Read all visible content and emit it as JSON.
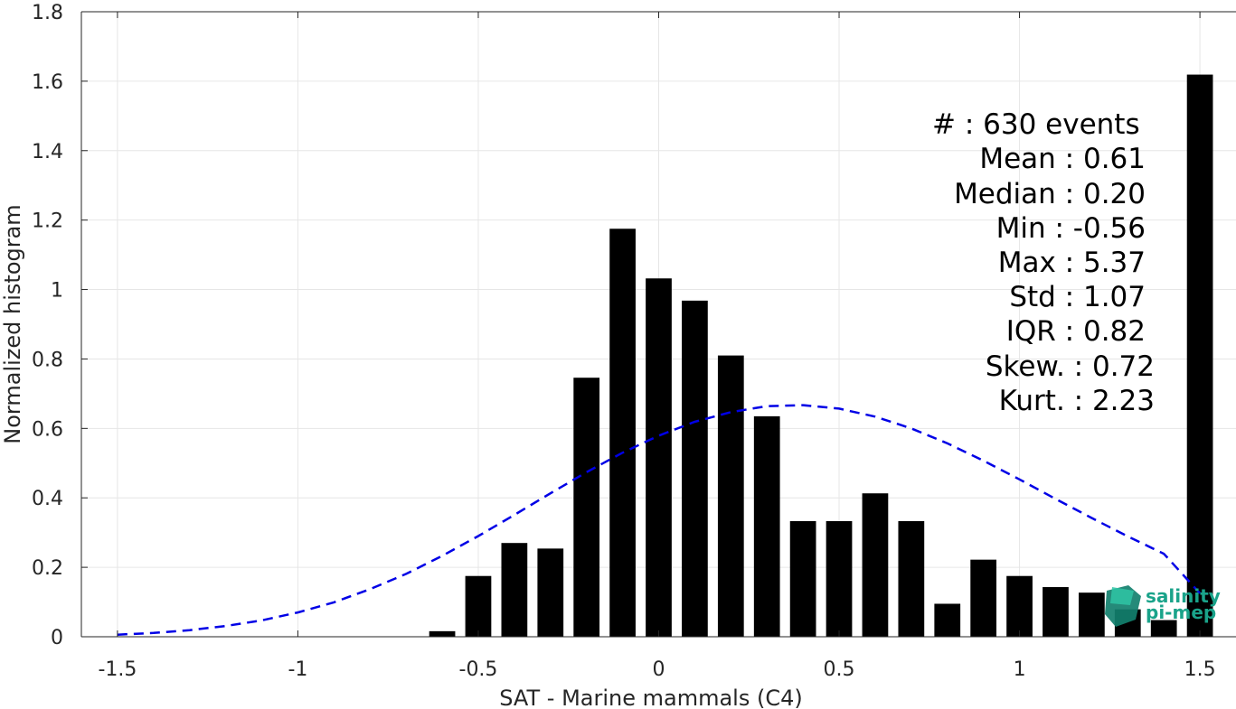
{
  "chart_data": {
    "type": "bar",
    "xlabel": "SAT - Marine mammals (C4)",
    "ylabel": "Normalized histogram",
    "xlim": [
      -1.6,
      1.6
    ],
    "ylim": [
      0,
      1.8
    ],
    "grid": true,
    "x_ticks": [
      -1.5,
      -1,
      -0.5,
      0,
      0.5,
      1,
      1.5
    ],
    "x_tick_labels": [
      "-1.5",
      "-1",
      "-0.5",
      "0",
      "0.5",
      "1",
      "1.5"
    ],
    "y_ticks": [
      0,
      0.2,
      0.4,
      0.6,
      0.8,
      1,
      1.2,
      1.4,
      1.6,
      1.8
    ],
    "y_tick_labels": [
      "0",
      "0.2",
      "0.4",
      "0.6",
      "0.8",
      "1",
      "1.2",
      "1.4",
      "1.6",
      "1.8"
    ],
    "bar_width": 0.072,
    "bars": [
      {
        "x": -0.6,
        "y": 0.016
      },
      {
        "x": -0.5,
        "y": 0.175
      },
      {
        "x": -0.4,
        "y": 0.27
      },
      {
        "x": -0.3,
        "y": 0.254
      },
      {
        "x": -0.2,
        "y": 0.746
      },
      {
        "x": -0.1,
        "y": 1.175
      },
      {
        "x": 0.0,
        "y": 1.032
      },
      {
        "x": 0.1,
        "y": 0.968
      },
      {
        "x": 0.2,
        "y": 0.81
      },
      {
        "x": 0.3,
        "y": 0.635
      },
      {
        "x": 0.4,
        "y": 0.333
      },
      {
        "x": 0.5,
        "y": 0.333
      },
      {
        "x": 0.6,
        "y": 0.413
      },
      {
        "x": 0.7,
        "y": 0.333
      },
      {
        "x": 0.8,
        "y": 0.095
      },
      {
        "x": 0.9,
        "y": 0.222
      },
      {
        "x": 1.0,
        "y": 0.175
      },
      {
        "x": 1.1,
        "y": 0.143
      },
      {
        "x": 1.2,
        "y": 0.127
      },
      {
        "x": 1.3,
        "y": 0.079
      },
      {
        "x": 1.4,
        "y": 0.048
      },
      {
        "x": 1.5,
        "y": 1.619
      }
    ],
    "fit_curve": {
      "style": "dashed",
      "color": "#0000e6",
      "points": [
        [
          -1.5,
          0.006
        ],
        [
          -1.4,
          0.011
        ],
        [
          -1.3,
          0.019
        ],
        [
          -1.2,
          0.031
        ],
        [
          -1.1,
          0.047
        ],
        [
          -1.0,
          0.07
        ],
        [
          -0.9,
          0.099
        ],
        [
          -0.8,
          0.137
        ],
        [
          -0.7,
          0.181
        ],
        [
          -0.6,
          0.233
        ],
        [
          -0.5,
          0.29
        ],
        [
          -0.4,
          0.351
        ],
        [
          -0.3,
          0.413
        ],
        [
          -0.2,
          0.474
        ],
        [
          -0.1,
          0.53
        ],
        [
          0.0,
          0.579
        ],
        [
          0.1,
          0.619
        ],
        [
          0.2,
          0.647
        ],
        [
          0.3,
          0.664
        ],
        [
          0.4,
          0.667
        ],
        [
          0.5,
          0.657
        ],
        [
          0.6,
          0.634
        ],
        [
          0.7,
          0.6
        ],
        [
          0.8,
          0.557
        ],
        [
          0.9,
          0.507
        ],
        [
          1.0,
          0.453
        ],
        [
          1.1,
          0.397
        ],
        [
          1.2,
          0.342
        ],
        [
          1.3,
          0.289
        ],
        [
          1.4,
          0.239
        ],
        [
          1.5,
          0.125
        ]
      ]
    },
    "bar_color": "#000000"
  },
  "stats": {
    "line1": "#  : 630 events",
    "line2": "Mean : 0.61",
    "line3": "Median : 0.20",
    "line4": "Min : -0.56",
    "line5": "Max : 5.37",
    "line6": "Std : 1.07",
    "line7": "IQR : 0.82",
    "line8": "Skew. : 0.72",
    "line9": "Kurt. : 2.23"
  },
  "logo": {
    "line1": "salinity",
    "line2": "pi-mep",
    "color": "#1aa38a"
  }
}
